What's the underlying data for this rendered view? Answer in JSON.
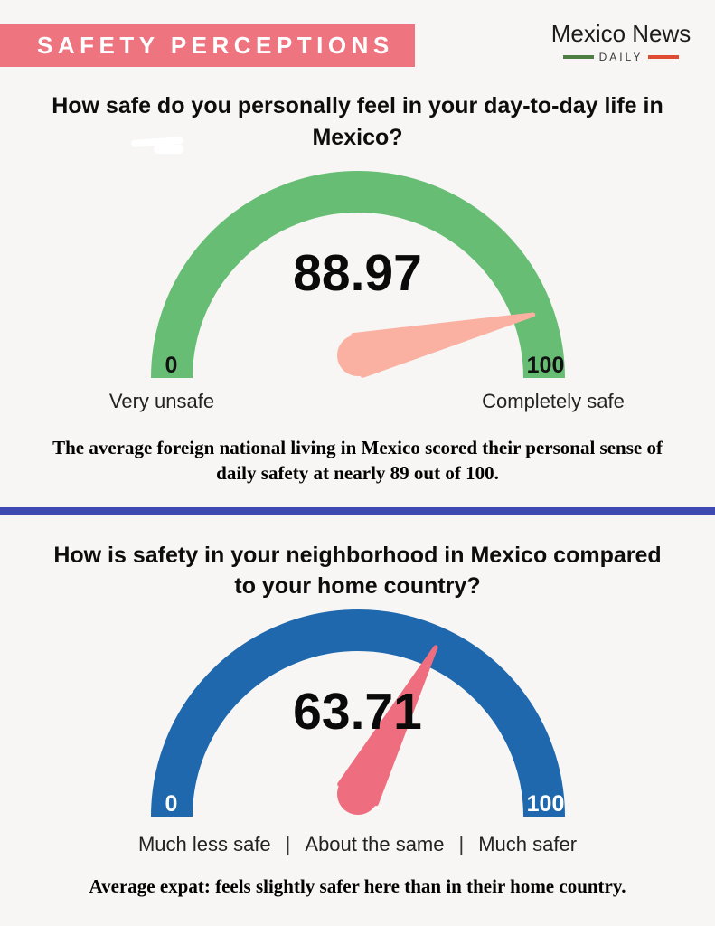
{
  "page": {
    "background": "#f7f6f4"
  },
  "header": {
    "banner_label": "SAFETY PERCEPTIONS",
    "banner_color": "#ee7480",
    "logo": {
      "name": "Mexico News",
      "daily": "DAILY",
      "green_line_color": "#4e7e44",
      "red_line_color": "#e04c31"
    }
  },
  "divider_color": "#3e4ab1",
  "separator": "|",
  "chart_data": [
    {
      "type": "gauge",
      "title": "How safe do you personally feel in your day-to-day life in Mexico?",
      "value": 88.97,
      "min": 0,
      "max": 100,
      "arc_color": "#68bd75",
      "needle_color": "#fbb1a2",
      "tick_label_color": "#111111",
      "min_label": "Very unsafe",
      "max_label": "Completely safe",
      "caption": "The average foreign national living in Mexico scored their personal sense of daily safety at nearly 89 out of 100."
    },
    {
      "type": "gauge",
      "title": "How is safety in your neighborhood in Mexico compared to your home country?",
      "value": 63.71,
      "min": 0,
      "max": 100,
      "arc_color": "#1f68ad",
      "needle_color": "#ee6e7f",
      "tick_label_color": "#ffffff",
      "scale_labels": [
        "Much less safe",
        "About the same",
        "Much safer"
      ],
      "caption": "Average expat: feels slightly safer here than in their home country."
    }
  ]
}
